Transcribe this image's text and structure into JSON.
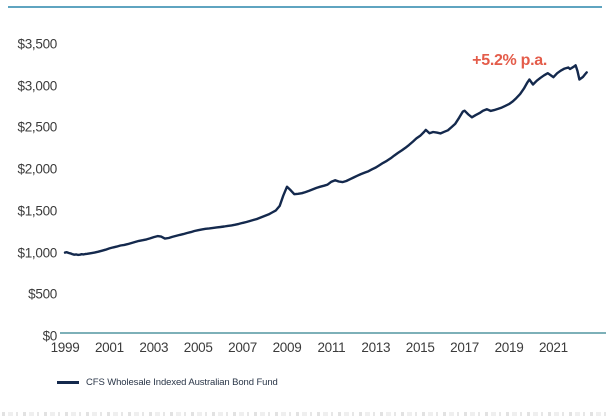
{
  "page": {
    "top_rule_color": "#5fa4c0",
    "axis_rule_color": "#7db0b8",
    "tick_label_color": "#3b3b3b"
  },
  "legend": {
    "label": "CFS Wholesale Indexed Australian Bond Fund",
    "swatch_color": "#14294d"
  },
  "annotation": {
    "text": "+5.2% p.a.",
    "color": "#e45c4a"
  },
  "chart_data": {
    "type": "line",
    "title": "",
    "xlabel": "",
    "ylabel": "",
    "grid": false,
    "legend_position": "bottom-left",
    "xlim": [
      1999,
      2021
    ],
    "ylim": [
      0,
      3500
    ],
    "yticks": [
      {
        "value": 0,
        "label": "$0"
      },
      {
        "value": 500,
        "label": "$500"
      },
      {
        "value": 1000,
        "label": "$1,000"
      },
      {
        "value": 1500,
        "label": "$1,500"
      },
      {
        "value": 2000,
        "label": "$2,000"
      },
      {
        "value": 2500,
        "label": "$2,500"
      },
      {
        "value": 3000,
        "label": "$3,000"
      },
      {
        "value": 3500,
        "label": "$3,500"
      }
    ],
    "xticks": [
      1999,
      2001,
      2003,
      2005,
      2007,
      2009,
      2011,
      2013,
      2015,
      2017,
      2019,
      2021
    ],
    "annotation": {
      "text": "+5.2% p.a.",
      "x": 2020,
      "y": 3300
    },
    "series": [
      {
        "name": "CFS Wholesale Indexed Australian Bond Fund",
        "color": "#14294d",
        "points": [
          [
            1999.0,
            1000
          ],
          [
            1999.08,
            1005
          ],
          [
            1999.17,
            995
          ],
          [
            1999.25,
            990
          ],
          [
            1999.33,
            982
          ],
          [
            1999.42,
            975
          ],
          [
            1999.5,
            978
          ],
          [
            1999.58,
            972
          ],
          [
            1999.67,
            975
          ],
          [
            1999.75,
            980
          ],
          [
            1999.83,
            978
          ],
          [
            1999.92,
            983
          ],
          [
            2000.0,
            985
          ],
          [
            2000.17,
            992
          ],
          [
            2000.33,
            1000
          ],
          [
            2000.5,
            1010
          ],
          [
            2000.67,
            1022
          ],
          [
            2000.83,
            1035
          ],
          [
            2001.0,
            1050
          ],
          [
            2001.17,
            1062
          ],
          [
            2001.33,
            1072
          ],
          [
            2001.5,
            1085
          ],
          [
            2001.67,
            1092
          ],
          [
            2001.83,
            1102
          ],
          [
            2002.0,
            1115
          ],
          [
            2002.17,
            1128
          ],
          [
            2002.33,
            1140
          ],
          [
            2002.5,
            1148
          ],
          [
            2002.67,
            1158
          ],
          [
            2002.83,
            1170
          ],
          [
            2003.0,
            1185
          ],
          [
            2003.17,
            1198
          ],
          [
            2003.33,
            1192
          ],
          [
            2003.5,
            1168
          ],
          [
            2003.67,
            1175
          ],
          [
            2003.83,
            1188
          ],
          [
            2004.0,
            1200
          ],
          [
            2004.17,
            1212
          ],
          [
            2004.33,
            1222
          ],
          [
            2004.5,
            1235
          ],
          [
            2004.67,
            1245
          ],
          [
            2004.83,
            1258
          ],
          [
            2005.0,
            1268
          ],
          [
            2005.17,
            1278
          ],
          [
            2005.33,
            1285
          ],
          [
            2005.5,
            1290
          ],
          [
            2005.67,
            1296
          ],
          [
            2005.83,
            1302
          ],
          [
            2006.0,
            1306
          ],
          [
            2006.17,
            1312
          ],
          [
            2006.33,
            1320
          ],
          [
            2006.5,
            1326
          ],
          [
            2006.67,
            1334
          ],
          [
            2006.83,
            1344
          ],
          [
            2007.0,
            1356
          ],
          [
            2007.17,
            1366
          ],
          [
            2007.33,
            1378
          ],
          [
            2007.5,
            1392
          ],
          [
            2007.67,
            1405
          ],
          [
            2007.83,
            1422
          ],
          [
            2008.0,
            1440
          ],
          [
            2008.17,
            1458
          ],
          [
            2008.33,
            1480
          ],
          [
            2008.5,
            1505
          ],
          [
            2008.67,
            1560
          ],
          [
            2008.83,
            1680
          ],
          [
            2009.0,
            1790
          ],
          [
            2009.17,
            1745
          ],
          [
            2009.33,
            1700
          ],
          [
            2009.5,
            1705
          ],
          [
            2009.67,
            1712
          ],
          [
            2009.83,
            1725
          ],
          [
            2010.0,
            1740
          ],
          [
            2010.17,
            1758
          ],
          [
            2010.33,
            1775
          ],
          [
            2010.5,
            1790
          ],
          [
            2010.67,
            1802
          ],
          [
            2010.83,
            1815
          ],
          [
            2011.0,
            1850
          ],
          [
            2011.17,
            1868
          ],
          [
            2011.33,
            1852
          ],
          [
            2011.5,
            1845
          ],
          [
            2011.67,
            1858
          ],
          [
            2011.83,
            1878
          ],
          [
            2012.0,
            1900
          ],
          [
            2012.17,
            1922
          ],
          [
            2012.33,
            1940
          ],
          [
            2012.5,
            1958
          ],
          [
            2012.67,
            1975
          ],
          [
            2012.83,
            1998
          ],
          [
            2013.0,
            2020
          ],
          [
            2013.17,
            2048
          ],
          [
            2013.33,
            2075
          ],
          [
            2013.5,
            2100
          ],
          [
            2013.67,
            2130
          ],
          [
            2013.83,
            2162
          ],
          [
            2014.0,
            2195
          ],
          [
            2014.17,
            2225
          ],
          [
            2014.33,
            2255
          ],
          [
            2014.5,
            2290
          ],
          [
            2014.67,
            2330
          ],
          [
            2014.83,
            2368
          ],
          [
            2015.0,
            2400
          ],
          [
            2015.17,
            2445
          ],
          [
            2015.25,
            2470
          ],
          [
            2015.42,
            2430
          ],
          [
            2015.58,
            2445
          ],
          [
            2015.75,
            2438
          ],
          [
            2015.92,
            2428
          ],
          [
            2016.08,
            2448
          ],
          [
            2016.25,
            2465
          ],
          [
            2016.42,
            2505
          ],
          [
            2016.58,
            2545
          ],
          [
            2016.75,
            2615
          ],
          [
            2016.92,
            2690
          ],
          [
            2017.0,
            2700
          ],
          [
            2017.17,
            2655
          ],
          [
            2017.33,
            2622
          ],
          [
            2017.5,
            2648
          ],
          [
            2017.67,
            2672
          ],
          [
            2017.83,
            2700
          ],
          [
            2018.0,
            2718
          ],
          [
            2018.17,
            2698
          ],
          [
            2018.33,
            2708
          ],
          [
            2018.5,
            2722
          ],
          [
            2018.67,
            2738
          ],
          [
            2018.83,
            2758
          ],
          [
            2019.0,
            2780
          ],
          [
            2019.17,
            2812
          ],
          [
            2019.33,
            2852
          ],
          [
            2019.5,
            2900
          ],
          [
            2019.67,
            2965
          ],
          [
            2019.83,
            3040
          ],
          [
            2019.92,
            3075
          ],
          [
            2020.08,
            3015
          ],
          [
            2020.25,
            3060
          ],
          [
            2020.42,
            3095
          ],
          [
            2020.58,
            3125
          ],
          [
            2020.75,
            3150
          ],
          [
            2020.92,
            3118
          ],
          [
            2021.0,
            3102
          ],
          [
            2021.17,
            3150
          ],
          [
            2021.33,
            3180
          ],
          [
            2021.5,
            3205
          ],
          [
            2021.67,
            3218
          ],
          [
            2021.75,
            3200
          ],
          [
            2021.92,
            3228
          ],
          [
            2022.0,
            3245
          ],
          [
            2022.08,
            3180
          ],
          [
            2022.17,
            3075
          ],
          [
            2022.33,
            3105
          ],
          [
            2022.42,
            3135
          ],
          [
            2022.5,
            3160
          ]
        ]
      }
    ]
  }
}
